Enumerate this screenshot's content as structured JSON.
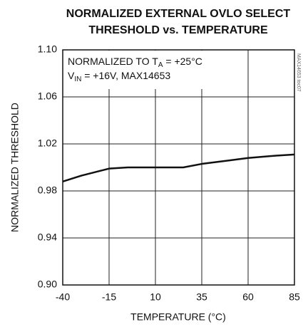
{
  "chart_data": {
    "type": "line",
    "title": [
      "NORMALIZED EXTERNAL OVLO SELECT",
      "THRESHOLD vs. TEMPERATURE"
    ],
    "xlabel": "TEMPERATURE (°C)",
    "ylabel": "NORMALIZED THRESHOLD",
    "annotations": [
      [
        "NORMALIZED TO T",
        "A",
        " = +25°C"
      ],
      [
        "V",
        "IN",
        " = +16V, MAX14653"
      ]
    ],
    "side_note": "MAX14653 toc07",
    "x": [
      -40,
      -30,
      -20,
      -15,
      -5,
      10,
      25,
      35,
      50,
      60,
      75,
      85
    ],
    "series": [
      {
        "color": "#111111",
        "values": [
          0.988,
          0.993,
          0.997,
          0.999,
          1.0,
          1.0,
          1.0,
          1.003,
          1.006,
          1.008,
          1.01,
          1.011
        ]
      }
    ],
    "xlim": [
      -40,
      85
    ],
    "xticks": [
      -40,
      -15,
      10,
      35,
      60,
      85
    ],
    "ylim": [
      0.9,
      1.1
    ],
    "yticks": [
      {
        "value": 0.9,
        "label": "0.90"
      },
      0.94,
      0.98,
      1.02,
      1.06,
      {
        "value": 1.1,
        "label": "1.10"
      }
    ],
    "grid": true
  }
}
